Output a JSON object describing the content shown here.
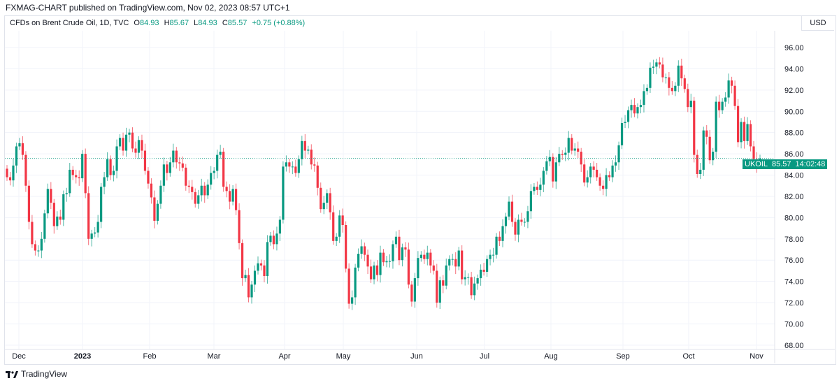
{
  "header": {
    "published": "FXMAG-CHART published on TradingView.com, Nov 02, 2023 08:57 UTC+1"
  },
  "legend": {
    "title": "CFDs on Brent Crude Oil, 1D, TVC",
    "o_label": "O",
    "o": "84.93",
    "h_label": "H",
    "h": "85.67",
    "l_label": "L",
    "l": "84.93",
    "c_label": "C",
    "c": "85.57",
    "change": "+0.75 (+0.88%)"
  },
  "currency": "USD",
  "price_tag": {
    "symbol": "UKOIL",
    "price": "85.57",
    "countdown": "14:02:48"
  },
  "footer": {
    "brand": "TradingView"
  },
  "colors": {
    "up": "#089981",
    "down": "#f23645",
    "grid": "#f0f3fa"
  },
  "chart_data": {
    "type": "candlestick",
    "ylim": [
      67,
      97
    ],
    "y_ticks": [
      "68.00",
      "70.00",
      "72.00",
      "74.00",
      "76.00",
      "78.00",
      "80.00",
      "82.00",
      "84.00",
      "86.00",
      "88.00",
      "90.00",
      "92.00",
      "94.00",
      "96.00"
    ],
    "x_ticks": [
      "Dec",
      "2023",
      "Feb",
      "Mar",
      "Apr",
      "May",
      "Jun",
      "Jul",
      "Aug",
      "Sep",
      "Oct",
      "Nov"
    ],
    "last_price": 85.57,
    "closes": [
      83.8,
      83.5,
      84.9,
      86.7,
      87.0,
      85.9,
      83.0,
      79.6,
      77.5,
      76.9,
      76.9,
      78.0,
      80.4,
      82.7,
      81.4,
      79.2,
      80.1,
      79.8,
      82.2,
      82.3,
      84.5,
      84.0,
      83.8,
      83.7,
      86.0,
      82.3,
      78.0,
      78.5,
      78.6,
      79.6,
      82.9,
      83.8,
      85.5,
      84.0,
      84.4,
      86.7,
      87.5,
      86.3,
      87.8,
      88.0,
      86.5,
      86.1,
      87.3,
      86.3,
      84.4,
      83.2,
      81.9,
      79.7,
      81.3,
      83.0,
      85.0,
      84.2,
      85.2,
      86.3,
      85.2,
      85.1,
      84.7,
      83.0,
      82.9,
      82.4,
      81.3,
      82.1,
      83.0,
      82.1,
      83.1,
      84.2,
      84.4,
      85.9,
      86.2,
      82.9,
      82.5,
      81.5,
      82.7,
      80.7,
      77.6,
      74.3,
      74.6,
      72.5,
      73.7,
      75.0,
      75.7,
      75.5,
      74.5,
      77.7,
      78.3,
      77.5,
      78.5,
      79.8,
      84.8,
      85.2,
      84.8,
      84.8,
      84.2,
      85.5,
      87.2,
      86.3,
      86.4,
      85.0,
      84.9,
      82.8,
      80.8,
      81.4,
      82.3,
      80.5,
      77.8,
      78.2,
      80.2,
      79.3,
      75.2,
      71.9,
      72.5,
      75.3,
      76.6,
      77.3,
      76.5,
      75.4,
      74.2,
      75.5,
      74.6,
      76.7,
      75.8,
      75.9,
      75.9,
      77.5,
      78.2,
      76.0,
      77.2,
      77.0,
      73.7,
      72.1,
      74.3,
      76.2,
      76.5,
      76.1,
      76.7,
      75.5,
      75.0,
      72.0,
      74.1,
      73.6,
      75.5,
      76.1,
      76.1,
      75.4,
      76.9,
      74.2,
      74.4,
      74.4,
      72.7,
      73.8,
      74.3,
      75.1,
      74.9,
      76.1,
      76.5,
      76.5,
      78.2,
      77.8,
      79.2,
      80.1,
      81.5,
      79.6,
      78.4,
      79.8,
      79.6,
      79.6,
      80.6,
      82.5,
      82.9,
      82.6,
      83.1,
      84.4,
      85.3,
      85.7,
      83.4,
      85.2,
      86.0,
      85.9,
      86.1,
      87.5,
      86.3,
      86.5,
      86.2,
      85.0,
      83.3,
      83.8,
      84.8,
      84.5,
      83.8,
      83.0,
      82.7,
      84.0,
      83.8,
      84.9,
      85.2,
      86.8,
      88.9,
      89.0,
      90.1,
      90.6,
      89.8,
      90.4,
      90.6,
      91.9,
      92.2,
      94.1,
      94.2,
      94.6,
      94.4,
      93.2,
      93.2,
      92.2,
      91.9,
      92.4,
      94.3,
      93.1,
      92.1,
      90.4,
      91.0,
      85.9,
      84.1,
      84.5,
      88.2,
      87.6,
      85.4,
      86.2,
      90.9,
      90.1,
      90.9,
      91.3,
      92.9,
      92.4,
      90.5,
      87.1,
      89.0,
      87.2,
      88.8,
      86.7,
      85.5,
      84.93,
      85.57
    ]
  }
}
